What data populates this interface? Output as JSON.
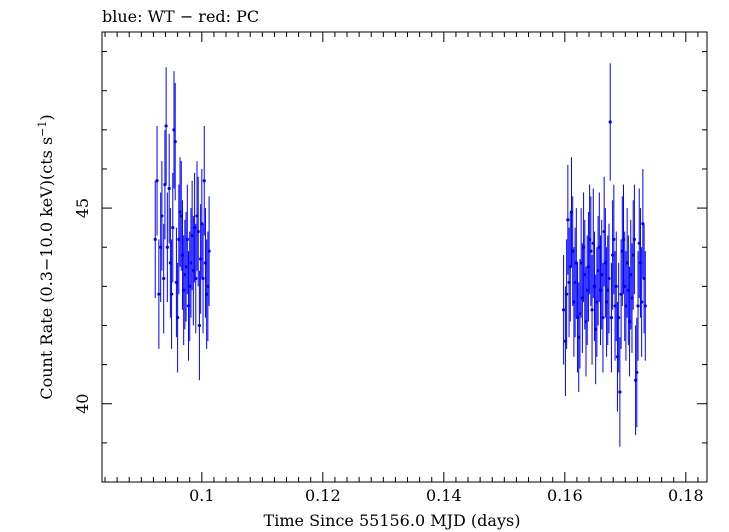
{
  "chart_data": {
    "type": "scatter",
    "title": "blue: WT − red: PC",
    "xlabel": "Time Since 55156.0 MJD (days)",
    "ylabel_main": "Count Rate (0.3−10.0 keV)(cts s",
    "ylabel_sup": "−1",
    "ylabel_tail": ")",
    "xlim": [
      0.0835,
      0.1835
    ],
    "ylim": [
      38.0,
      49.5
    ],
    "xticks": [
      0.1,
      0.12,
      0.14,
      0.16,
      0.18
    ],
    "xtick_labels": [
      "0.1",
      "0.12",
      "0.14",
      "0.16",
      "0.18"
    ],
    "yticks": [
      40,
      45
    ],
    "ytick_labels": [
      "40",
      "45"
    ],
    "series": [
      {
        "color": "#0000ff",
        "points": [
          [
            0.0923,
            44.2,
            1.5
          ],
          [
            0.0926,
            45.7,
            1.4
          ],
          [
            0.0929,
            42.8,
            1.4
          ],
          [
            0.0932,
            44.0,
            1.4
          ],
          [
            0.0934,
            44.8,
            1.4
          ],
          [
            0.0937,
            43.2,
            1.4
          ],
          [
            0.0939,
            45.6,
            1.4
          ],
          [
            0.0941,
            47.1,
            1.5
          ],
          [
            0.0943,
            44.0,
            1.4
          ],
          [
            0.0946,
            45.5,
            1.4
          ],
          [
            0.0948,
            43.6,
            1.4
          ],
          [
            0.095,
            42.8,
            1.4
          ],
          [
            0.0952,
            44.5,
            1.4
          ],
          [
            0.0954,
            47.0,
            1.5
          ],
          [
            0.0956,
            46.7,
            1.5
          ],
          [
            0.0958,
            43.1,
            1.4
          ],
          [
            0.096,
            42.2,
            1.4
          ],
          [
            0.0962,
            44.2,
            1.4
          ],
          [
            0.0964,
            44.9,
            1.4
          ],
          [
            0.0966,
            44.8,
            1.4
          ],
          [
            0.0968,
            43.8,
            1.4
          ],
          [
            0.097,
            42.9,
            1.4
          ],
          [
            0.0972,
            43.3,
            1.4
          ],
          [
            0.0974,
            43.5,
            1.4
          ],
          [
            0.0976,
            44.2,
            1.4
          ],
          [
            0.0978,
            42.5,
            1.4
          ],
          [
            0.098,
            43.0,
            1.4
          ],
          [
            0.0982,
            43.6,
            1.4
          ],
          [
            0.0984,
            44.3,
            1.4
          ],
          [
            0.0986,
            43.4,
            1.4
          ],
          [
            0.0988,
            44.5,
            1.4
          ],
          [
            0.099,
            43.2,
            1.4
          ],
          [
            0.0992,
            44.8,
            1.4
          ],
          [
            0.0994,
            44.4,
            1.4
          ],
          [
            0.0996,
            42.0,
            1.4
          ],
          [
            0.0998,
            43.7,
            1.4
          ],
          [
            0.1,
            44.6,
            1.4
          ],
          [
            0.1002,
            43.2,
            1.4
          ],
          [
            0.1004,
            45.7,
            1.4
          ],
          [
            0.1006,
            43.6,
            1.4
          ],
          [
            0.1008,
            42.8,
            1.4
          ],
          [
            0.101,
            43.0,
            1.4
          ],
          [
            0.1012,
            43.9,
            1.4
          ],
          [
            0.1598,
            42.4,
            1.4
          ],
          [
            0.1601,
            41.6,
            1.4
          ],
          [
            0.1603,
            42.8,
            1.4
          ],
          [
            0.1605,
            44.7,
            1.4
          ],
          [
            0.1607,
            43.1,
            1.4
          ],
          [
            0.1609,
            43.5,
            1.4
          ],
          [
            0.1611,
            44.9,
            1.4
          ],
          [
            0.1613,
            43.9,
            1.4
          ],
          [
            0.1615,
            42.6,
            1.4
          ],
          [
            0.1617,
            43.1,
            1.4
          ],
          [
            0.1619,
            43.6,
            1.4
          ],
          [
            0.1621,
            42.2,
            1.4
          ],
          [
            0.1623,
            41.7,
            1.4
          ],
          [
            0.1625,
            42.3,
            1.4
          ],
          [
            0.1627,
            43.6,
            1.4
          ],
          [
            0.1629,
            42.7,
            1.4
          ],
          [
            0.1631,
            44.0,
            1.4
          ],
          [
            0.1633,
            43.3,
            1.4
          ],
          [
            0.1635,
            42.1,
            1.4
          ],
          [
            0.1637,
            42.9,
            1.4
          ],
          [
            0.1639,
            43.5,
            1.4
          ],
          [
            0.1641,
            44.2,
            1.4
          ],
          [
            0.1643,
            43.9,
            1.4
          ],
          [
            0.1645,
            42.4,
            1.4
          ],
          [
            0.1647,
            44.1,
            1.4
          ],
          [
            0.1649,
            43.0,
            1.4
          ],
          [
            0.1651,
            41.9,
            1.4
          ],
          [
            0.1653,
            42.6,
            1.4
          ],
          [
            0.1655,
            43.4,
            1.4
          ],
          [
            0.1657,
            44.0,
            1.4
          ],
          [
            0.1659,
            42.9,
            1.4
          ],
          [
            0.1661,
            43.3,
            1.4
          ],
          [
            0.1663,
            42.2,
            1.4
          ],
          [
            0.1665,
            44.4,
            1.4
          ],
          [
            0.1667,
            43.6,
            1.4
          ],
          [
            0.1669,
            42.6,
            1.4
          ],
          [
            0.1671,
            42.9,
            1.4
          ],
          [
            0.1673,
            43.2,
            1.4
          ],
          [
            0.1675,
            47.2,
            1.5
          ],
          [
            0.1677,
            42.2,
            1.4
          ],
          [
            0.1679,
            43.8,
            1.4
          ],
          [
            0.1681,
            44.2,
            1.4
          ],
          [
            0.1683,
            42.5,
            1.4
          ],
          [
            0.1685,
            43.0,
            1.4
          ],
          [
            0.1687,
            41.2,
            1.4
          ],
          [
            0.1689,
            42.2,
            1.4
          ],
          [
            0.1691,
            40.3,
            1.4
          ],
          [
            0.1693,
            42.8,
            1.4
          ],
          [
            0.1695,
            43.9,
            1.4
          ],
          [
            0.1697,
            44.2,
            1.4
          ],
          [
            0.1699,
            43.0,
            1.4
          ],
          [
            0.1701,
            42.5,
            1.4
          ],
          [
            0.1703,
            43.6,
            1.4
          ],
          [
            0.1705,
            42.9,
            1.4
          ],
          [
            0.1707,
            42.1,
            1.4
          ],
          [
            0.1709,
            43.3,
            1.4
          ],
          [
            0.1711,
            42.7,
            1.4
          ],
          [
            0.1713,
            43.8,
            1.4
          ],
          [
            0.1715,
            44.2,
            1.4
          ],
          [
            0.1717,
            40.6,
            1.4
          ],
          [
            0.1719,
            40.8,
            1.4
          ],
          [
            0.1721,
            42.5,
            1.4
          ],
          [
            0.1723,
            44.1,
            1.4
          ],
          [
            0.1725,
            43.6,
            1.4
          ],
          [
            0.1727,
            42.6,
            1.4
          ],
          [
            0.1729,
            44.6,
            1.4
          ],
          [
            0.1731,
            43.2,
            1.4
          ],
          [
            0.1733,
            42.5,
            1.4
          ]
        ]
      }
    ]
  }
}
